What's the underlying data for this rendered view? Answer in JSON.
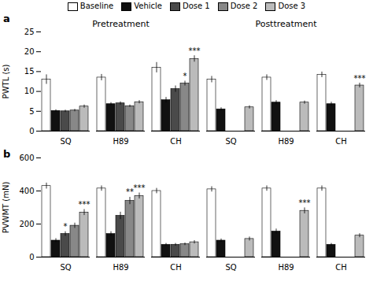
{
  "chart_data": [
    {
      "type": "bar",
      "title": "a",
      "ylabel": "PWTL (s)",
      "ylim": [
        0,
        25
      ],
      "yticks": [
        0,
        5,
        10,
        15,
        20,
        25
      ],
      "grid": false,
      "legend": "top",
      "categories": [
        "SQ",
        "H89",
        "CH",
        "SQ",
        "H89",
        "CH"
      ],
      "groups": [
        "Pretreatment",
        "Pretreatment",
        "Pretreatment",
        "Posttreatment",
        "Posttreatment",
        "Posttreatment"
      ],
      "series": [
        {
          "name": "Baseline",
          "color": "#FFFFFF",
          "values": [
            13.0,
            13.5,
            16.0,
            13.0,
            13.5,
            14.2
          ],
          "errors": [
            1.2,
            0.8,
            1.3,
            0.8,
            0.7,
            0.7
          ]
        },
        {
          "name": "Vehicle",
          "color": "#111111",
          "values": [
            5.1,
            6.8,
            7.8,
            5.5,
            7.2,
            6.8
          ],
          "errors": [
            0.3,
            0.4,
            0.7,
            0.4,
            0.5,
            0.5
          ]
        },
        {
          "name": "Dose 1",
          "color": "#4A4A4A",
          "values": [
            5.0,
            7.0,
            10.6,
            null,
            null,
            null
          ],
          "errors": [
            0.3,
            0.4,
            0.8,
            null,
            null,
            null
          ]
        },
        {
          "name": "Dose 2",
          "color": "#888888",
          "values": [
            5.2,
            6.3,
            12.0,
            null,
            null,
            null
          ],
          "errors": [
            0.3,
            0.3,
            0.6,
            null,
            null,
            null
          ]
        },
        {
          "name": "Dose 3",
          "color": "#BBBBBB",
          "values": [
            6.2,
            7.3,
            18.2,
            6.0,
            7.2,
            11.5
          ],
          "errors": [
            0.4,
            0.4,
            0.8,
            0.4,
            0.4,
            0.6
          ]
        }
      ],
      "annotations": [
        {
          "text": "*",
          "category_index": 2,
          "series": "Dose 2"
        },
        {
          "text": "***",
          "category_index": 2,
          "series": "Dose 3"
        },
        {
          "text": "***",
          "category_index": 5,
          "series": "Dose 3"
        }
      ]
    },
    {
      "type": "bar",
      "title": "b",
      "ylabel": "PVWMT (mN)",
      "ylim": [
        0,
        600
      ],
      "yticks": [
        0,
        200,
        400,
        600
      ],
      "grid": false,
      "categories": [
        "SQ",
        "H89",
        "CH",
        "SQ",
        "H89",
        "CH"
      ],
      "series": [
        {
          "name": "Baseline",
          "color": "#FFFFFF",
          "values": [
            430,
            415,
            400,
            410,
            415,
            415
          ],
          "errors": [
            18,
            16,
            16,
            16,
            16,
            16
          ]
        },
        {
          "name": "Vehicle",
          "color": "#111111",
          "values": [
            100,
            140,
            75,
            100,
            155,
            75
          ],
          "errors": [
            12,
            14,
            8,
            10,
            15,
            8
          ]
        },
        {
          "name": "Dose 1",
          "color": "#4A4A4A",
          "values": [
            140,
            250,
            75,
            null,
            null,
            null
          ],
          "errors": [
            14,
            22,
            8,
            null,
            null,
            null
          ]
        },
        {
          "name": "Dose 2",
          "color": "#888888",
          "values": [
            190,
            340,
            78,
            null,
            null,
            null
          ],
          "errors": [
            16,
            22,
            8,
            null,
            null,
            null
          ]
        },
        {
          "name": "Dose 3",
          "color": "#BBBBBB",
          "values": [
            270,
            370,
            90,
            110,
            280,
            130
          ],
          "errors": [
            18,
            18,
            10,
            12,
            18,
            12
          ]
        }
      ],
      "annotations": [
        {
          "text": "*",
          "category_index": 0,
          "series": "Dose 1"
        },
        {
          "text": "***",
          "category_index": 0,
          "series": "Dose 3"
        },
        {
          "text": "**",
          "category_index": 1,
          "series": "Dose 2"
        },
        {
          "text": "***",
          "category_index": 1,
          "series": "Dose 3"
        },
        {
          "text": "***",
          "category_index": 4,
          "series": "Dose 3"
        }
      ]
    }
  ]
}
